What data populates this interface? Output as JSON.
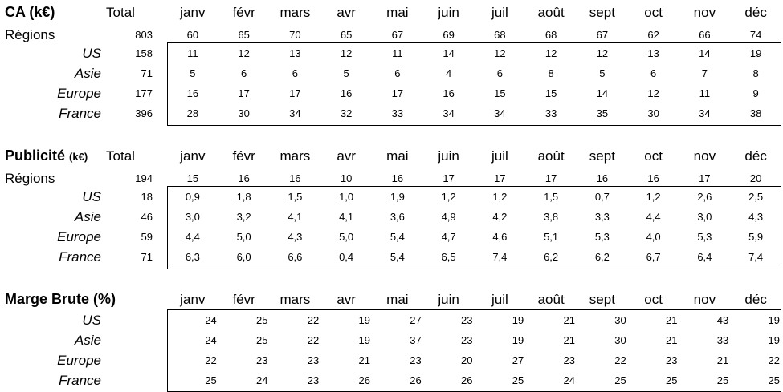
{
  "months": [
    "janv",
    "févr",
    "mars",
    "avr",
    "mai",
    "juin",
    "juil",
    "août",
    "sept",
    "oct",
    "nov",
    "déc"
  ],
  "ca": {
    "title": "CA (k€)",
    "total_label": "Total",
    "regions_label": "Régions",
    "regions_total": "803",
    "regions_values": [
      "60",
      "65",
      "70",
      "65",
      "67",
      "69",
      "68",
      "68",
      "67",
      "62",
      "66",
      "74"
    ],
    "rows": [
      {
        "name": "US",
        "total": "158",
        "values": [
          "11",
          "12",
          "13",
          "12",
          "11",
          "14",
          "12",
          "12",
          "12",
          "13",
          "14",
          "19"
        ]
      },
      {
        "name": "Asie",
        "total": "71",
        "values": [
          "5",
          "6",
          "6",
          "5",
          "6",
          "4",
          "6",
          "8",
          "5",
          "6",
          "7",
          "8"
        ]
      },
      {
        "name": "Europe",
        "total": "177",
        "values": [
          "16",
          "17",
          "17",
          "16",
          "17",
          "16",
          "15",
          "15",
          "14",
          "12",
          "11",
          "9"
        ]
      },
      {
        "name": "France",
        "total": "396",
        "values": [
          "28",
          "30",
          "34",
          "32",
          "33",
          "34",
          "34",
          "33",
          "35",
          "30",
          "34",
          "38"
        ]
      }
    ]
  },
  "pub": {
    "title": "Publicité",
    "unit": "(k€)",
    "total_label": "Total",
    "regions_label": "Régions",
    "regions_total": "194",
    "regions_values": [
      "15",
      "16",
      "16",
      "10",
      "16",
      "17",
      "17",
      "17",
      "16",
      "16",
      "17",
      "20"
    ],
    "rows": [
      {
        "name": "US",
        "total": "18",
        "values": [
          "0,9",
          "1,8",
          "1,5",
          "1,0",
          "1,9",
          "1,2",
          "1,2",
          "1,5",
          "0,7",
          "1,2",
          "2,6",
          "2,5"
        ]
      },
      {
        "name": "Asie",
        "total": "46",
        "values": [
          "3,0",
          "3,2",
          "4,1",
          "4,1",
          "3,6",
          "4,9",
          "4,2",
          "3,8",
          "3,3",
          "4,4",
          "3,0",
          "4,3"
        ]
      },
      {
        "name": "Europe",
        "total": "59",
        "values": [
          "4,4",
          "5,0",
          "4,3",
          "5,0",
          "5,4",
          "4,7",
          "4,6",
          "5,1",
          "5,3",
          "4,0",
          "5,3",
          "5,9"
        ]
      },
      {
        "name": "France",
        "total": "71",
        "values": [
          "6,3",
          "6,0",
          "6,6",
          "0,4",
          "5,4",
          "6,5",
          "7,4",
          "6,2",
          "6,2",
          "6,7",
          "6,4",
          "7,4"
        ]
      }
    ]
  },
  "marge": {
    "title": "Marge Brute (%)",
    "rows": [
      {
        "name": "US",
        "values": [
          "24",
          "25",
          "22",
          "19",
          "27",
          "23",
          "19",
          "21",
          "30",
          "21",
          "43",
          "19"
        ]
      },
      {
        "name": "Asie",
        "values": [
          "24",
          "25",
          "22",
          "19",
          "37",
          "23",
          "19",
          "21",
          "30",
          "21",
          "33",
          "19"
        ]
      },
      {
        "name": "Europe",
        "values": [
          "22",
          "23",
          "23",
          "21",
          "23",
          "20",
          "27",
          "23",
          "22",
          "23",
          "21",
          "22"
        ]
      },
      {
        "name": "France",
        "values": [
          "25",
          "24",
          "23",
          "26",
          "26",
          "26",
          "25",
          "24",
          "25",
          "25",
          "25",
          "25"
        ]
      }
    ]
  }
}
